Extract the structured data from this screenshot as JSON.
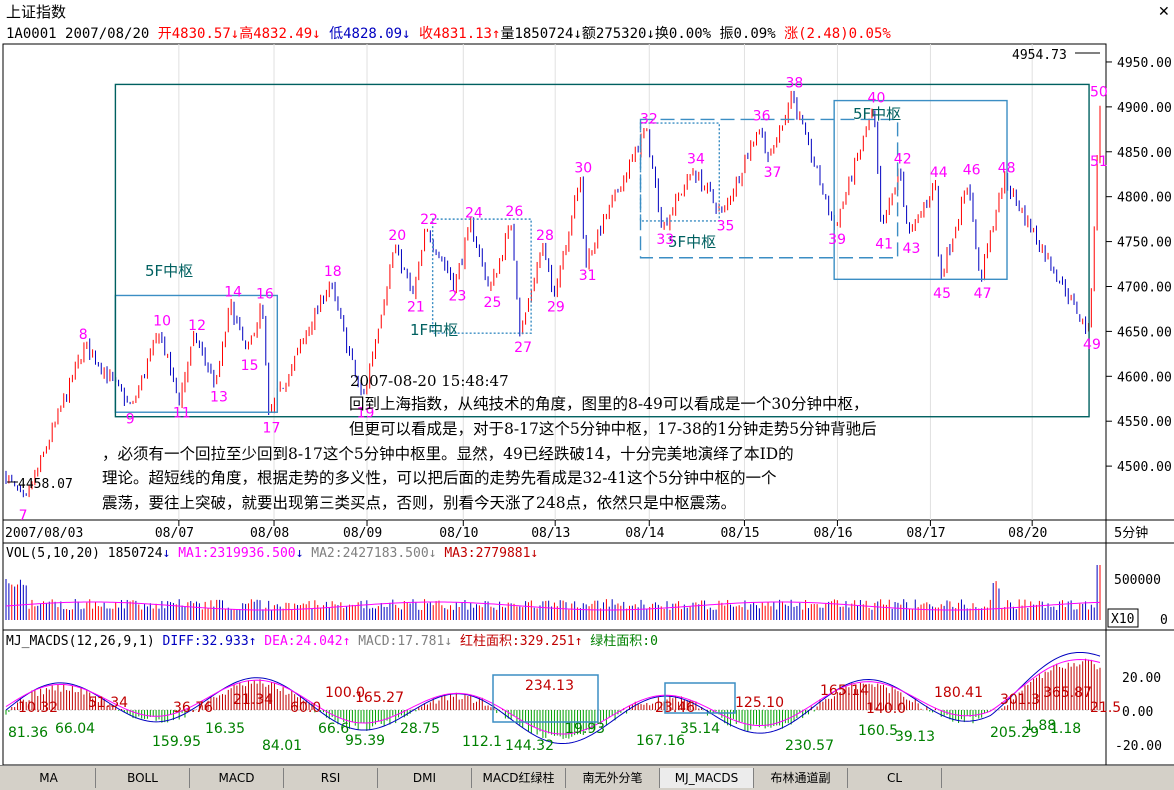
{
  "window": {
    "title": "上证指数"
  },
  "quote": {
    "code": "1A0001",
    "date": "2007/08/20",
    "open_label": "开",
    "open": "4830.57",
    "high_label": "高",
    "high": "4832.49",
    "low_label": "低",
    "low": "4828.09",
    "close_label": "收",
    "close": "4831.13",
    "vol_label": "量",
    "vol": "1850724",
    "amt_label": "额",
    "amt": "275320",
    "turnover_label": "换",
    "turnover": "0.00%",
    "amplitude_label": "振",
    "amplitude": "0.09%",
    "change_label": "涨",
    "change": "(2.48)0.05%"
  },
  "colors": {
    "up": "#ff0000",
    "down": "#0000c0",
    "magenta": "#ff00ff",
    "teal": "#006060",
    "box": "#3b8ec4"
  },
  "chart_data": {
    "type": "candlestick",
    "period": "5分钟",
    "ylim": [
      4440,
      4970
    ],
    "y_ticks": [
      "4950.00",
      "4900.00",
      "4850.00",
      "4800.00",
      "4750.00",
      "4700.00",
      "4650.00",
      "4600.00",
      "4550.00",
      "4500.00"
    ],
    "x_ticks": [
      "2007/08/03",
      "08/07",
      "08/08",
      "08/09",
      "08/10",
      "08/13",
      "08/14",
      "08/15",
      "08/16",
      "08/17",
      "08/20"
    ],
    "max_label": "4954.73",
    "min_label": "4458.07",
    "swing_points": [
      {
        "id": "7",
        "x": 0.017,
        "v": 4458
      },
      {
        "id": "8",
        "x": 0.072,
        "v": 4635
      },
      {
        "id": "9",
        "x": 0.115,
        "v": 4565
      },
      {
        "id": "10",
        "x": 0.14,
        "v": 4650
      },
      {
        "id": "11",
        "x": 0.158,
        "v": 4572
      },
      {
        "id": "12",
        "x": 0.172,
        "v": 4645
      },
      {
        "id": "13",
        "x": 0.192,
        "v": 4590
      },
      {
        "id": "14",
        "x": 0.205,
        "v": 4682
      },
      {
        "id": "15",
        "x": 0.22,
        "v": 4625
      },
      {
        "id": "16",
        "x": 0.234,
        "v": 4680
      },
      {
        "id": "17",
        "x": 0.24,
        "v": 4555
      },
      {
        "id": "18",
        "x": 0.296,
        "v": 4705
      },
      {
        "id": "19",
        "x": 0.326,
        "v": 4572
      },
      {
        "id": "20",
        "x": 0.355,
        "v": 4745
      },
      {
        "id": "21",
        "x": 0.372,
        "v": 4690
      },
      {
        "id": "22",
        "x": 0.384,
        "v": 4763
      },
      {
        "id": "23",
        "x": 0.41,
        "v": 4702
      },
      {
        "id": "24",
        "x": 0.425,
        "v": 4770
      },
      {
        "id": "25",
        "x": 0.442,
        "v": 4695
      },
      {
        "id": "26",
        "x": 0.462,
        "v": 4772
      },
      {
        "id": "27",
        "x": 0.47,
        "v": 4645
      },
      {
        "id": "28",
        "x": 0.49,
        "v": 4745
      },
      {
        "id": "29",
        "x": 0.5,
        "v": 4690
      },
      {
        "id": "30",
        "x": 0.525,
        "v": 4820
      },
      {
        "id": "31",
        "x": 0.529,
        "v": 4725
      },
      {
        "id": "32",
        "x": 0.585,
        "v": 4875
      },
      {
        "id": "33",
        "x": 0.6,
        "v": 4765
      },
      {
        "id": "34",
        "x": 0.628,
        "v": 4830
      },
      {
        "id": "35",
        "x": 0.655,
        "v": 4780
      },
      {
        "id": "36",
        "x": 0.688,
        "v": 4878
      },
      {
        "id": "37",
        "x": 0.698,
        "v": 4840
      },
      {
        "id": "38",
        "x": 0.718,
        "v": 4915
      },
      {
        "id": "39",
        "x": 0.757,
        "v": 4765
      },
      {
        "id": "40",
        "x": 0.793,
        "v": 4898
      },
      {
        "id": "41",
        "x": 0.8,
        "v": 4760
      },
      {
        "id": "42",
        "x": 0.817,
        "v": 4830
      },
      {
        "id": "43",
        "x": 0.825,
        "v": 4755
      },
      {
        "id": "44",
        "x": 0.85,
        "v": 4815
      },
      {
        "id": "45",
        "x": 0.853,
        "v": 4705
      },
      {
        "id": "46",
        "x": 0.88,
        "v": 4818
      },
      {
        "id": "47",
        "x": 0.89,
        "v": 4705
      },
      {
        "id": "48",
        "x": 0.912,
        "v": 4820
      },
      {
        "id": "49",
        "x": 0.99,
        "v": 4648
      },
      {
        "id": "50",
        "x": 1.06,
        "v": 4905
      },
      {
        "id": "51",
        "x": 1.08,
        "v": 4852
      }
    ],
    "annotation_boxes": [
      {
        "label": "5F中枢",
        "style": "solid",
        "x0": 0.1,
        "x1": 0.248,
        "v0": 4560,
        "v1": 4690
      },
      {
        "label": "1F中枢",
        "style": "dotted",
        "x0": 0.39,
        "x1": 0.48,
        "v0": 4648,
        "v1": 4775
      },
      {
        "label": "5F中枢",
        "style": "dashed",
        "x0": 0.58,
        "x1": 0.815,
        "v0": 4732,
        "v1": 4886
      },
      {
        "label": "",
        "style": "dotted",
        "x0": 0.58,
        "x1": 0.652,
        "v0": 4773,
        "v1": 4882
      },
      {
        "label": "5F中枢",
        "style": "solid",
        "x0": 0.757,
        "x1": 0.915,
        "v0": 4708,
        "v1": 4907
      },
      {
        "label": "",
        "style": "solid",
        "x0": 0.1,
        "x1": 0.99,
        "v0": 4555,
        "v1": 4925
      }
    ],
    "note": {
      "time": "2007-08-20 15:48:47",
      "lines": [
        "回到上海指数，从纯技术的角度，图里的8-49可以看成是一个30分钟中枢，",
        "但更可以看成是，对于8-17这个5分钟中枢，17-38的1分钟走势5分钟背驰后",
        "，必须有一个回拉至少回到8-17这个5分钟中枢里。显然，49已经跌破14，十分完美地演绎了本ID的",
        "理论。超短线的角度，根据走势的多义性，可以把后面的走势先看成是32-41这个5分钟中枢的一个",
        "震荡，要往上突破，就要出现第三类买点，否则，别看今天涨了248点，依然只是中枢震荡。"
      ]
    }
  },
  "volume_panel": {
    "title": "VOL(5,10,20)",
    "vol": "1850724",
    "ma1": "MA1:2319936.500",
    "ma2": "MA2:2427183.500",
    "ma3": "MA3:2779881",
    "y_ticks": [
      "500000",
      "0"
    ],
    "scale_badge": "X10"
  },
  "macd_panel": {
    "title": "MJ_MACDS(12,26,9,1)",
    "diff": "DIFF:32.933",
    "dea": "DEA:24.042",
    "macd": "MACD:17.781",
    "red_area": "红柱面积:329.251",
    "green_area": "绿柱面积:0",
    "y_ticks": [
      "20.00",
      "0.00",
      "-20.00"
    ],
    "red_labels": [
      "10.32",
      "51.34",
      "36.76",
      "21.34",
      "60.0",
      "100.0",
      "165.27",
      "234.13",
      "23.46",
      "125.10",
      "165.14",
      "140.0",
      "180.41",
      "301.3",
      "365.87",
      "21.5"
    ],
    "green_labels": [
      "81.36",
      "66.04",
      "159.95",
      "16.35",
      "84.01",
      "66.6",
      "95.39",
      "28.75",
      "112.1",
      "144.32",
      "19.93",
      "167.16",
      "35.14",
      "230.57",
      "160.5",
      "39.13",
      "205.29",
      "1.88",
      "1.18"
    ]
  },
  "tabs": [
    "MA",
    "BOLL",
    "MACD",
    "RSI",
    "DMI",
    "MACD红绿柱",
    "南无外分笔",
    "MJ_MACDS",
    "布林通道副",
    "CL"
  ]
}
